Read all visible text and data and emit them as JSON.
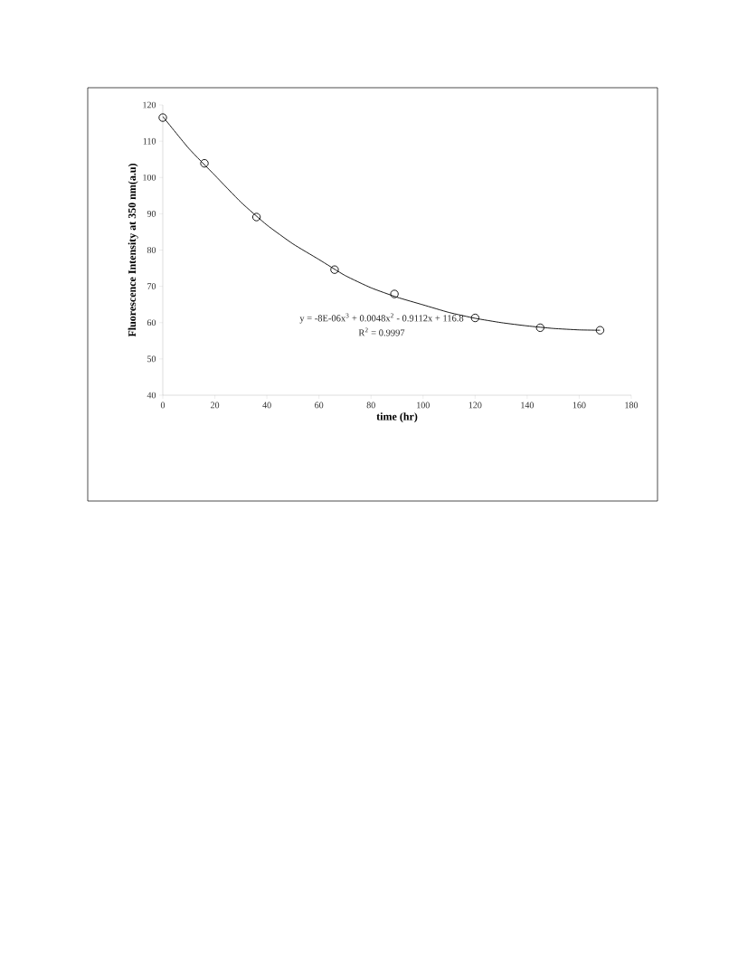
{
  "chart_data": {
    "type": "scatter",
    "xlabel": "time (hr)",
    "ylabel": "Fluorescence Intensity at 350 nm(a.u)",
    "xlim": [
      0,
      180
    ],
    "ylim": [
      40,
      120
    ],
    "xticks": [
      0,
      20,
      40,
      60,
      80,
      100,
      120,
      140,
      160,
      180
    ],
    "yticks": [
      40,
      50,
      60,
      70,
      80,
      90,
      100,
      110,
      120
    ],
    "series": [
      {
        "marker": "circle",
        "color": "#000000",
        "x": [
          0,
          16,
          36,
          66,
          89,
          120,
          145,
          168
        ],
        "values": [
          116.5,
          103.9,
          89.1,
          74.6,
          67.9,
          61.3,
          58.6,
          57.9
        ]
      },
      {
        "type": "line",
        "marker": "none",
        "color": "#000000",
        "x": [
          0,
          10,
          20,
          30,
          40,
          50,
          60,
          70,
          80,
          90,
          100,
          110,
          120,
          130,
          140,
          150,
          160,
          168
        ],
        "values": [
          116.8,
          108.0,
          100.6,
          93.2,
          86.9,
          81.7,
          77.4,
          73.0,
          69.6,
          67.0,
          64.9,
          62.8,
          61.2,
          60.0,
          59.1,
          58.4,
          58.0,
          57.9
        ]
      }
    ],
    "annotations": [
      "y = -8E-06x$^{3}$ + 0.0048x$^{2}$ - 0.9112x + 116.8",
      "R$^{2}$ = 0.9997"
    ]
  }
}
